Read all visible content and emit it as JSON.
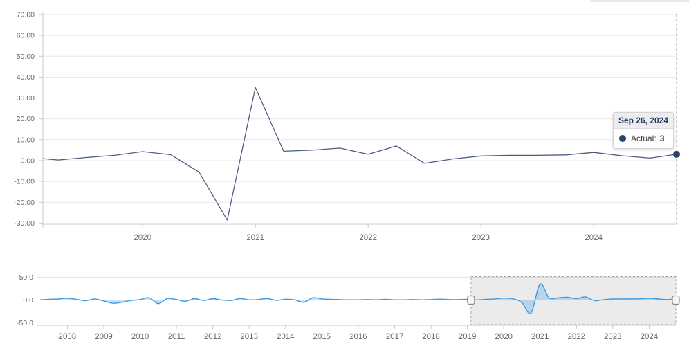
{
  "tooltip": {
    "date": "Sep 26, 2024",
    "series_label": "Actual:",
    "value": "3"
  },
  "colors": {
    "series_line": "#4b5d83",
    "series_marker": "#26436e",
    "navigator_line": "#3f9be2",
    "navigator_fill": "rgba(111,175,229,0.40)",
    "grid": "#e7e7e7",
    "axis": "#c9c9c9",
    "tick_label": "#666666",
    "crosshair": "#9a9a9a",
    "selection_fill": "rgba(0,0,0,0.08)",
    "selection_border": "#a0a0a0",
    "handle_fill": "#f6f6f6",
    "handle_border": "#8a8a8a",
    "tooltip_header_bg": "#ededed",
    "tooltip_text": "#1e3a5f"
  },
  "chart_data": {
    "type": "line",
    "title": "",
    "series": [
      {
        "name": "Actual",
        "points": [
          [
            2007.25,
            0.5
          ],
          [
            2007.5,
            1.5
          ],
          [
            2007.75,
            2.5
          ],
          [
            2008.0,
            4
          ],
          [
            2008.25,
            1.5
          ],
          [
            2008.5,
            -1.5
          ],
          [
            2008.75,
            2.5
          ],
          [
            2009.0,
            -2
          ],
          [
            2009.25,
            -7
          ],
          [
            2009.5,
            -5
          ],
          [
            2009.75,
            -1
          ],
          [
            2010.0,
            1
          ],
          [
            2010.25,
            5
          ],
          [
            2010.5,
            -8
          ],
          [
            2010.75,
            3.5
          ],
          [
            2011.0,
            1
          ],
          [
            2011.25,
            -2.5
          ],
          [
            2011.5,
            3
          ],
          [
            2011.75,
            -1
          ],
          [
            2012.0,
            3
          ],
          [
            2012.25,
            0
          ],
          [
            2012.5,
            -1
          ],
          [
            2012.75,
            3.3
          ],
          [
            2013.0,
            0.5
          ],
          [
            2013.25,
            1
          ],
          [
            2013.5,
            3.3
          ],
          [
            2013.75,
            -0.7
          ],
          [
            2014.0,
            1.8
          ],
          [
            2014.25,
            0.5
          ],
          [
            2014.5,
            -5
          ],
          [
            2014.75,
            5
          ],
          [
            2015.0,
            2.5
          ],
          [
            2015.25,
            1.5
          ],
          [
            2015.5,
            1
          ],
          [
            2015.75,
            0.5
          ],
          [
            2016.0,
            0.5
          ],
          [
            2016.25,
            1
          ],
          [
            2016.5,
            0.5
          ],
          [
            2016.75,
            1.5
          ],
          [
            2017.0,
            0.5
          ],
          [
            2017.25,
            0.5
          ],
          [
            2017.5,
            1
          ],
          [
            2017.75,
            0.5
          ],
          [
            2018.0,
            1
          ],
          [
            2018.25,
            2
          ],
          [
            2018.5,
            1
          ],
          [
            2018.75,
            1
          ],
          [
            2019.0,
            1.5
          ],
          [
            2019.25,
            0.3
          ],
          [
            2019.5,
            1.5
          ],
          [
            2019.75,
            2.5
          ],
          [
            2020.0,
            4.3
          ],
          [
            2020.25,
            2.8
          ],
          [
            2020.5,
            -5.5
          ],
          [
            2020.75,
            -28.5
          ],
          [
            2021.0,
            35
          ],
          [
            2021.25,
            4.5
          ],
          [
            2021.5,
            5
          ],
          [
            2021.75,
            6
          ],
          [
            2022.0,
            3
          ],
          [
            2022.25,
            7
          ],
          [
            2022.5,
            -1.3
          ],
          [
            2022.75,
            0.8
          ],
          [
            2023.0,
            2.2
          ],
          [
            2023.25,
            2.5
          ],
          [
            2023.5,
            2.5
          ],
          [
            2023.75,
            2.7
          ],
          [
            2024.0,
            3.9
          ],
          [
            2024.25,
            2.3
          ],
          [
            2024.5,
            1.2
          ],
          [
            2024.735,
            3
          ]
        ]
      }
    ],
    "last_point": {
      "date": "Sep 26, 2024",
      "value": 3,
      "x": 2024.735
    },
    "main_chart": {
      "x_domain": [
        2019.115,
        2024.735
      ],
      "ylim": [
        -30,
        70
      ],
      "grid": "horizontal",
      "y_ticks": [
        {
          "value": 70,
          "label": "70.00"
        },
        {
          "value": 60,
          "label": "60.00"
        },
        {
          "value": 50,
          "label": "50.00"
        },
        {
          "value": 40,
          "label": "40.00"
        },
        {
          "value": 30,
          "label": "30.00"
        },
        {
          "value": 20,
          "label": "20.00"
        },
        {
          "value": 10,
          "label": "10.00"
        },
        {
          "value": 0,
          "label": "0.00"
        },
        {
          "value": -10,
          "label": "-10.00"
        },
        {
          "value": -20,
          "label": "-20.00"
        },
        {
          "value": -30,
          "label": "-30.00"
        }
      ],
      "x_ticks": [
        {
          "value": 2020,
          "label": "2020"
        },
        {
          "value": 2021,
          "label": "2021"
        },
        {
          "value": 2022,
          "label": "2022"
        },
        {
          "value": 2023,
          "label": "2023"
        },
        {
          "value": 2024,
          "label": "2024"
        }
      ]
    },
    "navigator": {
      "x_domain": [
        2007.25,
        2024.735
      ],
      "ylim": [
        -50,
        50
      ],
      "selected_range": [
        2019.1,
        2024.735
      ],
      "y_ticks": [
        {
          "value": 50,
          "label": "50.0"
        },
        {
          "value": 0,
          "label": "0.0"
        },
        {
          "value": -50,
          "label": "-50.0"
        }
      ],
      "x_ticks": [
        {
          "value": 2008,
          "label": "2008"
        },
        {
          "value": 2009,
          "label": "2009"
        },
        {
          "value": 2010,
          "label": "2010"
        },
        {
          "value": 2011,
          "label": "2011"
        },
        {
          "value": 2012,
          "label": "2012"
        },
        {
          "value": 2013,
          "label": "2013"
        },
        {
          "value": 2014,
          "label": "2014"
        },
        {
          "value": 2015,
          "label": "2015"
        },
        {
          "value": 2016,
          "label": "2016"
        },
        {
          "value": 2017,
          "label": "2017"
        },
        {
          "value": 2018,
          "label": "2018"
        },
        {
          "value": 2019,
          "label": "2019"
        },
        {
          "value": 2020,
          "label": "2020"
        },
        {
          "value": 2021,
          "label": "2021"
        },
        {
          "value": 2022,
          "label": "2022"
        },
        {
          "value": 2023,
          "label": "2023"
        },
        {
          "value": 2024,
          "label": "2024"
        }
      ]
    }
  }
}
